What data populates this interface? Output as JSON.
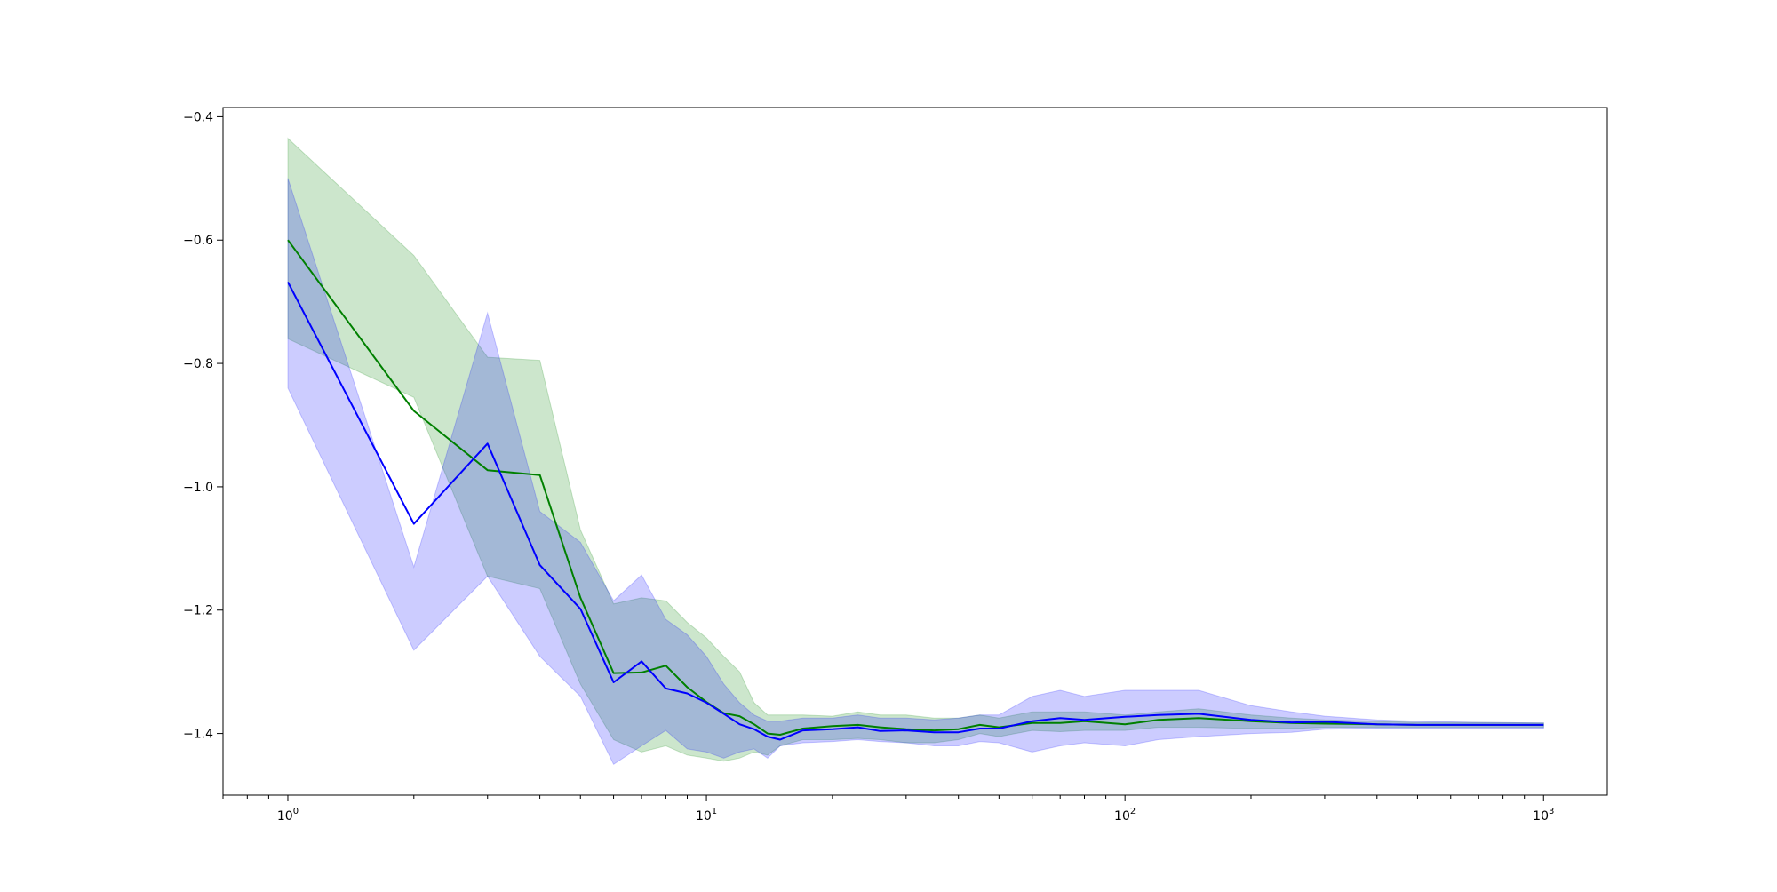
{
  "chart_data": {
    "type": "line",
    "xscale": "log",
    "xlim": [
      0.7,
      1420
    ],
    "ylim": [
      -1.5,
      -0.385
    ],
    "xticks": [
      {
        "value": 1,
        "base": "10",
        "exp": "0"
      },
      {
        "value": 10,
        "base": "10",
        "exp": "1"
      },
      {
        "value": 100,
        "base": "10",
        "exp": "2"
      },
      {
        "value": 1000,
        "base": "10",
        "exp": "3"
      }
    ],
    "yticks": [
      {
        "value": -0.4,
        "label": "−0.4"
      },
      {
        "value": -0.6,
        "label": "−0.6"
      },
      {
        "value": -0.8,
        "label": "−0.8"
      },
      {
        "value": -1.0,
        "label": "−1.0"
      },
      {
        "value": -1.2,
        "label": "−1.2"
      },
      {
        "value": -1.4,
        "label": "−1.4"
      }
    ],
    "grid": false,
    "series": [
      {
        "color": "#008000",
        "band_color": "#008000",
        "band_opacity": 0.2,
        "x": [
          1,
          2,
          3,
          4,
          5,
          6,
          7,
          8,
          9,
          10,
          11,
          12,
          13,
          14,
          15,
          17,
          20,
          23,
          26,
          30,
          35,
          40,
          45,
          50,
          60,
          70,
          80,
          100,
          120,
          150,
          200,
          250,
          300,
          400,
          500,
          700,
          1000
        ],
        "y": [
          -0.6,
          -0.877,
          -0.973,
          -0.981,
          -1.18,
          -1.302,
          -1.301,
          -1.29,
          -1.325,
          -1.349,
          -1.367,
          -1.372,
          -1.385,
          -1.4,
          -1.402,
          -1.392,
          -1.388,
          -1.386,
          -1.39,
          -1.393,
          -1.395,
          -1.393,
          -1.386,
          -1.39,
          -1.383,
          -1.383,
          -1.38,
          -1.385,
          -1.378,
          -1.375,
          -1.38,
          -1.383,
          -1.384,
          -1.385,
          -1.386,
          -1.386,
          -1.386
        ],
        "lower": [
          -0.76,
          -0.855,
          -1.145,
          -1.165,
          -1.32,
          -1.41,
          -1.43,
          -1.42,
          -1.435,
          -1.44,
          -1.445,
          -1.44,
          -1.43,
          -1.435,
          -1.42,
          -1.41,
          -1.41,
          -1.408,
          -1.41,
          -1.415,
          -1.415,
          -1.41,
          -1.4,
          -1.405,
          -1.395,
          -1.397,
          -1.395,
          -1.395,
          -1.39,
          -1.39,
          -1.392,
          -1.392,
          -1.39,
          -1.39,
          -1.39,
          -1.39,
          -1.39
        ],
        "upper": [
          -0.435,
          -0.625,
          -0.79,
          -0.795,
          -1.07,
          -1.19,
          -1.18,
          -1.185,
          -1.22,
          -1.245,
          -1.275,
          -1.3,
          -1.35,
          -1.37,
          -1.37,
          -1.37,
          -1.372,
          -1.365,
          -1.37,
          -1.37,
          -1.375,
          -1.375,
          -1.37,
          -1.375,
          -1.365,
          -1.365,
          -1.365,
          -1.37,
          -1.365,
          -1.36,
          -1.37,
          -1.375,
          -1.378,
          -1.38,
          -1.382,
          -1.382,
          -1.383
        ]
      },
      {
        "color": "#0000ff",
        "band_color": "#0000ff",
        "band_opacity": 0.2,
        "x": [
          1,
          2,
          3,
          4,
          5,
          6,
          7,
          8,
          9,
          10,
          11,
          12,
          13,
          14,
          15,
          17,
          20,
          23,
          26,
          30,
          35,
          40,
          45,
          50,
          60,
          70,
          80,
          100,
          120,
          150,
          200,
          250,
          300,
          400,
          500,
          700,
          1000
        ],
        "y": [
          -0.668,
          -1.06,
          -0.93,
          -1.127,
          -1.198,
          -1.317,
          -1.283,
          -1.327,
          -1.335,
          -1.35,
          -1.368,
          -1.385,
          -1.393,
          -1.405,
          -1.41,
          -1.395,
          -1.393,
          -1.39,
          -1.396,
          -1.395,
          -1.398,
          -1.398,
          -1.392,
          -1.392,
          -1.38,
          -1.375,
          -1.378,
          -1.373,
          -1.37,
          -1.368,
          -1.378,
          -1.382,
          -1.381,
          -1.385,
          -1.386,
          -1.386,
          -1.386
        ],
        "lower": [
          -0.84,
          -1.265,
          -1.145,
          -1.275,
          -1.34,
          -1.45,
          -1.42,
          -1.395,
          -1.425,
          -1.43,
          -1.44,
          -1.43,
          -1.425,
          -1.44,
          -1.42,
          -1.415,
          -1.413,
          -1.41,
          -1.413,
          -1.415,
          -1.42,
          -1.42,
          -1.413,
          -1.415,
          -1.43,
          -1.42,
          -1.415,
          -1.42,
          -1.41,
          -1.405,
          -1.4,
          -1.398,
          -1.393,
          -1.392,
          -1.392,
          -1.392,
          -1.392
        ],
        "upper": [
          -0.5,
          -1.13,
          -0.718,
          -1.04,
          -1.09,
          -1.185,
          -1.143,
          -1.215,
          -1.24,
          -1.275,
          -1.32,
          -1.35,
          -1.37,
          -1.38,
          -1.38,
          -1.375,
          -1.375,
          -1.37,
          -1.375,
          -1.375,
          -1.378,
          -1.375,
          -1.37,
          -1.37,
          -1.34,
          -1.33,
          -1.34,
          -1.33,
          -1.33,
          -1.33,
          -1.355,
          -1.365,
          -1.372,
          -1.378,
          -1.38,
          -1.382,
          -1.383
        ]
      }
    ]
  }
}
